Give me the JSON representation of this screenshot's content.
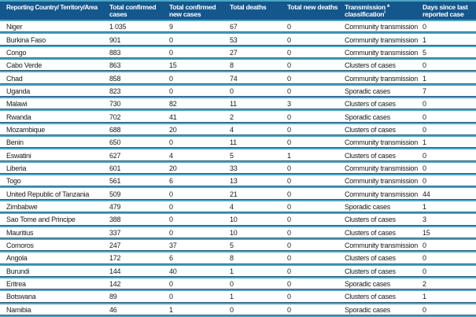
{
  "colors": {
    "header_background": "#14578C",
    "header_text": "#FFFFFF",
    "separator_teal": "#4BA6C4",
    "separator_dark": "#1F5C7A",
    "body_text": "#1A1A1A"
  },
  "header": {
    "col_country": "Reporting Country/ Territory/Area",
    "col_total_cases": "Total confirmed cases",
    "col_new_cases": "Total confirmed new cases",
    "col_deaths": "Total deaths",
    "col_new_deaths": "Total new deaths",
    "col_classification_line1": "Transmission",
    "col_classification_marker": "*",
    "col_classification_line2": "classification",
    "col_classification_sup": "i",
    "col_days": "Days since last reported case"
  },
  "table": {
    "rows": [
      {
        "country": "Niger",
        "total_cases": "1 035",
        "new_cases": "9",
        "deaths": "67",
        "new_deaths": "0",
        "classification": "Community transmission",
        "days_since_last": "0"
      },
      {
        "country": "Burkina Faso",
        "total_cases": "901",
        "new_cases": "0",
        "deaths": "53",
        "new_deaths": "0",
        "classification": "Community transmission",
        "days_since_last": "1"
      },
      {
        "country": "Congo",
        "total_cases": "883",
        "new_cases": "0",
        "deaths": "27",
        "new_deaths": "0",
        "classification": "Community transmission",
        "days_since_last": "5"
      },
      {
        "country": "Cabo Verde",
        "total_cases": "863",
        "new_cases": "15",
        "deaths": "8",
        "new_deaths": "0",
        "classification": "Clusters of cases",
        "days_since_last": "0"
      },
      {
        "country": "Chad",
        "total_cases": "858",
        "new_cases": "0",
        "deaths": "74",
        "new_deaths": "0",
        "classification": "Community transmission",
        "days_since_last": "1"
      },
      {
        "country": "Uganda",
        "total_cases": "823",
        "new_cases": "0",
        "deaths": "0",
        "new_deaths": "0",
        "classification": "Sporadic cases",
        "days_since_last": "7"
      },
      {
        "country": "Malawi",
        "total_cases": "730",
        "new_cases": "82",
        "deaths": "11",
        "new_deaths": "3",
        "classification": "Clusters of cases",
        "days_since_last": "0"
      },
      {
        "country": "Rwanda",
        "total_cases": "702",
        "new_cases": "41",
        "deaths": "2",
        "new_deaths": "0",
        "classification": "Sporadic cases",
        "days_since_last": "0"
      },
      {
        "country": "Mozambique",
        "total_cases": "688",
        "new_cases": "20",
        "deaths": "4",
        "new_deaths": "0",
        "classification": "Clusters of cases",
        "days_since_last": "0"
      },
      {
        "country": "Benin",
        "total_cases": "650",
        "new_cases": "0",
        "deaths": "11",
        "new_deaths": "0",
        "classification": "Community transmission",
        "days_since_last": "1"
      },
      {
        "country": "Eswatini",
        "total_cases": "627",
        "new_cases": "4",
        "deaths": "5",
        "new_deaths": "1",
        "classification": "Clusters of cases",
        "days_since_last": "0"
      },
      {
        "country": "Liberia",
        "total_cases": "601",
        "new_cases": "20",
        "deaths": "33",
        "new_deaths": "0",
        "classification": "Community transmission",
        "days_since_last": "0"
      },
      {
        "country": "Togo",
        "total_cases": "561",
        "new_cases": "6",
        "deaths": "13",
        "new_deaths": "0",
        "classification": "Community transmission",
        "days_since_last": "0"
      },
      {
        "country": "United Republic of Tanzania",
        "total_cases": "509",
        "new_cases": "0",
        "deaths": "21",
        "new_deaths": "0",
        "classification": "Community transmission",
        "days_since_last": "44"
      },
      {
        "country": "Zimbabwe",
        "total_cases": "479",
        "new_cases": "0",
        "deaths": "4",
        "new_deaths": "0",
        "classification": "Sporadic cases",
        "days_since_last": "1"
      },
      {
        "country": "Sao Tome and Principe",
        "total_cases": "388",
        "new_cases": "0",
        "deaths": "10",
        "new_deaths": "0",
        "classification": "Clusters of cases",
        "days_since_last": "3"
      },
      {
        "country": "Mauritius",
        "total_cases": "337",
        "new_cases": "0",
        "deaths": "10",
        "new_deaths": "0",
        "classification": "Clusters of cases",
        "days_since_last": "15"
      },
      {
        "country": "Comoros",
        "total_cases": "247",
        "new_cases": "37",
        "deaths": "5",
        "new_deaths": "0",
        "classification": "Community transmission",
        "days_since_last": "0"
      },
      {
        "country": "Angola",
        "total_cases": "172",
        "new_cases": "6",
        "deaths": "8",
        "new_deaths": "0",
        "classification": "Clusters of cases",
        "days_since_last": "0"
      },
      {
        "country": "Burundi",
        "total_cases": "144",
        "new_cases": "40",
        "deaths": "1",
        "new_deaths": "0",
        "classification": "Clusters of cases",
        "days_since_last": "0"
      },
      {
        "country": "Eritrea",
        "total_cases": "142",
        "new_cases": "0",
        "deaths": "0",
        "new_deaths": "0",
        "classification": "Sporadic cases",
        "days_since_last": "2"
      },
      {
        "country": "Botswana",
        "total_cases": "89",
        "new_cases": "0",
        "deaths": "1",
        "new_deaths": "0",
        "classification": "Clusters of cases",
        "days_since_last": "1"
      },
      {
        "country": "Namibia",
        "total_cases": "46",
        "new_cases": "1",
        "deaths": "0",
        "new_deaths": "0",
        "classification": "Sporadic cases",
        "days_since_last": "0"
      }
    ]
  }
}
